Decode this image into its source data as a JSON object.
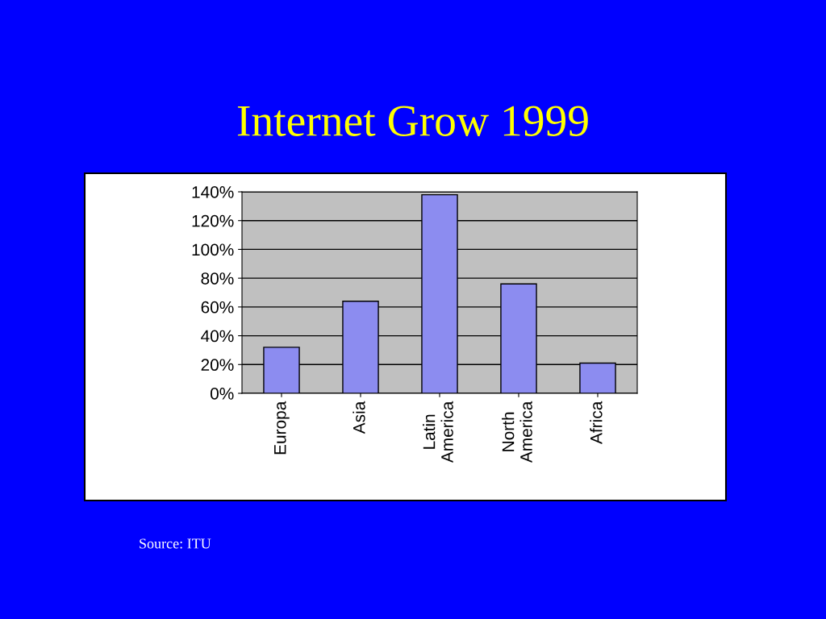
{
  "chart_data": {
    "type": "bar",
    "title": "Internet Grow 1999",
    "categories": [
      "Europa",
      "Asia",
      "Latin\nAmerica",
      "North\nAmerica",
      "Africa"
    ],
    "values": [
      32,
      64,
      138,
      76,
      21
    ],
    "color": "#8c8cf0",
    "ylim": [
      0,
      140
    ],
    "yticks": [
      {
        "value": 0,
        "label": "0%"
      },
      {
        "value": 20,
        "label": "20%"
      },
      {
        "value": 40,
        "label": "40%"
      },
      {
        "value": 60,
        "label": "60%"
      },
      {
        "value": 80,
        "label": "80%"
      },
      {
        "value": 100,
        "label": "100%"
      },
      {
        "value": 120,
        "label": "120%"
      },
      {
        "value": 140,
        "label": "140%"
      }
    ],
    "grid": "y",
    "annotations": [
      "Source: ITU"
    ]
  }
}
